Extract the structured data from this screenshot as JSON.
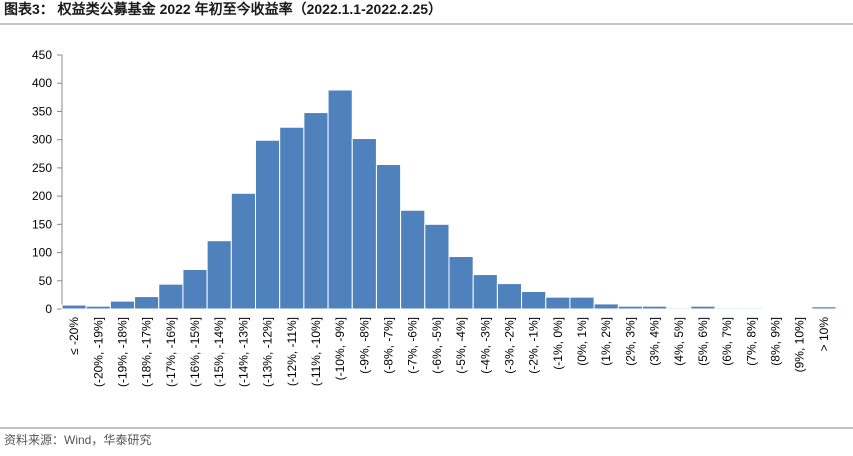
{
  "chart_data": {
    "type": "bar",
    "title": "图表3： 权益类公募基金 2022 年初至今收益率（2022.1.1-2022.2.25）",
    "source": "资料来源：Wind，华泰研究",
    "categories": [
      "≤ -20%",
      "(-20%, -19%]",
      "(-19%, -18%]",
      "(-18%, -17%]",
      "(-17%, -16%]",
      "(-16%, -15%]",
      "(-15%, -14%]",
      "(-14%, -13%]",
      "(-13%, -12%]",
      "(-12%, -11%]",
      "(-11%, -10%]",
      "(-10%, -9%]",
      "(-9%, -8%]",
      "(-8%, -7%]",
      "(-7%, -6%]",
      "(-6%, -5%]",
      "(-5%, -4%]",
      "(-4%, -3%]",
      "(-3%, -2%]",
      "(-2%, -1%]",
      "(-1%, 0%]",
      "(0%, 1%]",
      "(1%, 2%]",
      "(2%, 3%]",
      "(3%, 4%]",
      "(4%, 5%]",
      "(5%, 6%]",
      "(6%, 7%]",
      "(7%, 8%]",
      "(8%, 9%]",
      "(9%, 10%]",
      "> 10%"
    ],
    "values": [
      7,
      5,
      14,
      22,
      44,
      70,
      121,
      205,
      299,
      322,
      348,
      388,
      302,
      256,
      175,
      150,
      93,
      61,
      45,
      31,
      21,
      21,
      9,
      5,
      5,
      2,
      5,
      2,
      2,
      1,
      1,
      4
    ],
    "color": "#4f81bd",
    "ylim": [
      0,
      450
    ],
    "yticks": [
      0,
      50,
      100,
      150,
      200,
      250,
      300,
      350,
      400,
      450
    ],
    "grid": false
  }
}
